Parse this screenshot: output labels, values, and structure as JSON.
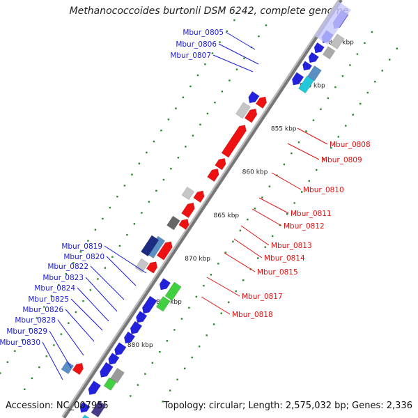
{
  "title": "Methanococcoides burtonii DSM 6242, complete genome",
  "footer": {
    "accession": "Accession: NC_007955",
    "summary": "Topology: circular; Length: 2,575,032 bp; Genes: 2,336"
  },
  "colors": {
    "backbone": "#777777",
    "tick_dots": "#2a8a2a",
    "label_left": "#1a1ad6",
    "label_right": "#e01010"
  },
  "kbp_ticks": [
    {
      "label": "845 kbp",
      "kbp": 845
    },
    {
      "label": "850 kbp",
      "kbp": 850
    },
    {
      "label": "855 kbp",
      "kbp": 855
    },
    {
      "label": "860 kbp",
      "kbp": 860
    },
    {
      "label": "865 kbp",
      "kbp": 865
    },
    {
      "label": "870 kbp",
      "kbp": 870
    },
    {
      "label": "875 kbp",
      "kbp": 875
    },
    {
      "label": "880 kbp",
      "kbp": 880
    }
  ],
  "genes_labeled_left": [
    "Mbur_0805",
    "Mbur_0806",
    "Mbur_0807",
    "Mbur_0819",
    "Mbur_0820",
    "Mbur_0822",
    "Mbur_0823",
    "Mbur_0824",
    "Mbur_0825",
    "Mbur_0826",
    "Mbur_0828",
    "Mbur_0829",
    "Mbur_0830"
  ],
  "genes_labeled_right": [
    "Mbur_0808",
    "Mbur_0809",
    "Mbur_0810",
    "Mbur_0811",
    "Mbur_0812",
    "Mbur_0813",
    "Mbur_0814",
    "Mbur_0815",
    "Mbur_0817",
    "Mbur_0818"
  ]
}
